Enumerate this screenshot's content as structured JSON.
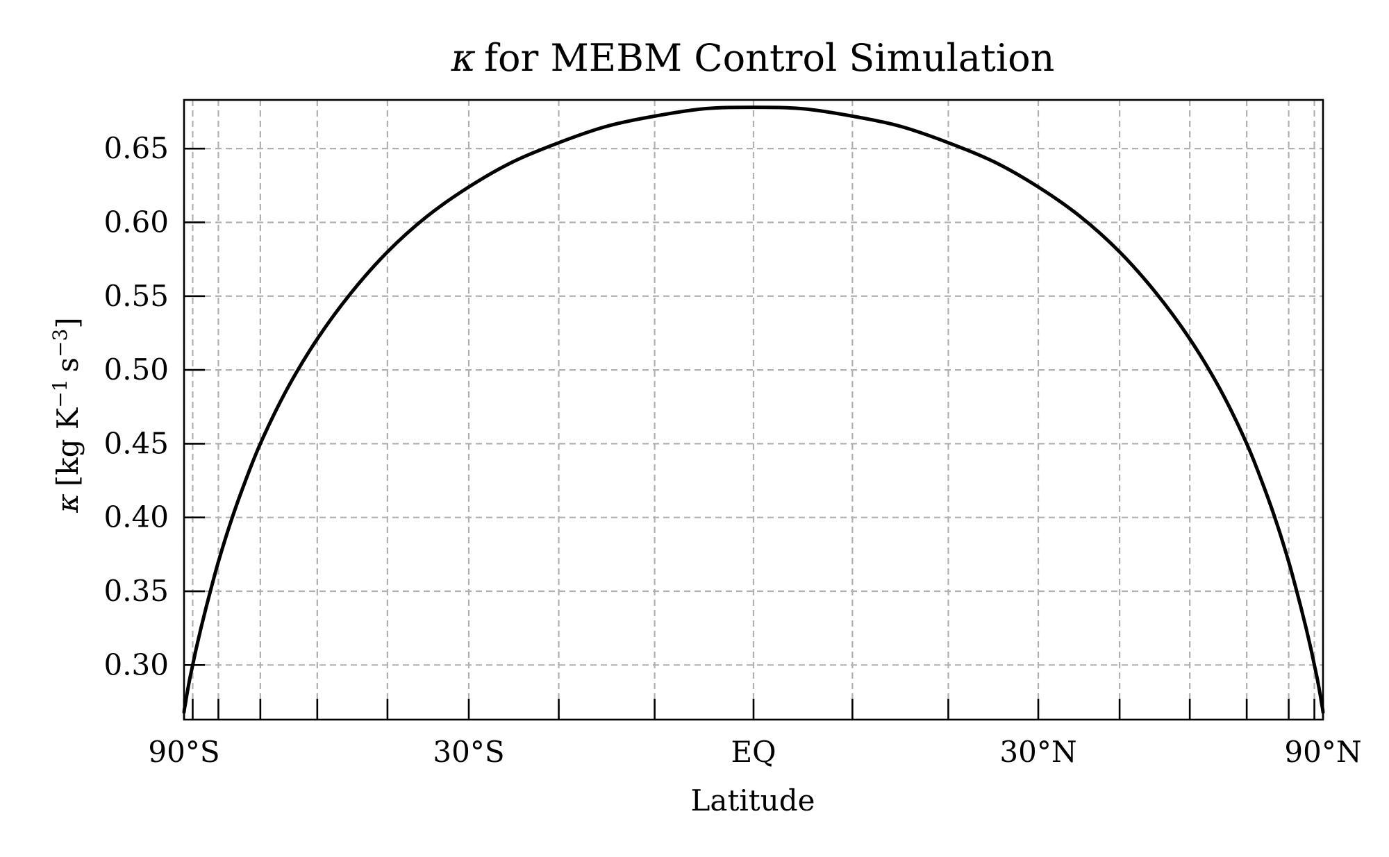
{
  "chart_data": {
    "type": "line",
    "title": "for MEBM Control Simulation",
    "title_symbol": "κ",
    "xlabel": "Latitude",
    "ylabel_symbol": "κ",
    "ylabel_open": "[kg K",
    "ylabel_exp1": "−1",
    "ylabel_mid": "s",
    "ylabel_exp2": "−3",
    "ylabel_close": "]",
    "x_scale": "sine of latitude",
    "xlim": [
      -90,
      90
    ],
    "ylim": [
      0.263,
      0.683
    ],
    "grid": true,
    "legend": "none",
    "line_color": "#000000",
    "grid_color": "#b0b0b0",
    "x_ticks": [
      {
        "value": -90,
        "label": "90°S"
      },
      {
        "value": -30,
        "label": "30°S"
      },
      {
        "value": 0,
        "label": "EQ"
      },
      {
        "value": 30,
        "label": "30°N"
      },
      {
        "value": 90,
        "label": "90°N"
      }
    ],
    "x_minor_ticks": [
      -80,
      -70,
      -60,
      -50,
      -40,
      -20,
      -10,
      10,
      20,
      40,
      50,
      60,
      70,
      80
    ],
    "y_ticks": [
      {
        "value": 0.3,
        "label": "0.30"
      },
      {
        "value": 0.35,
        "label": "0.35"
      },
      {
        "value": 0.4,
        "label": "0.40"
      },
      {
        "value": 0.45,
        "label": "0.45"
      },
      {
        "value": 0.5,
        "label": "0.50"
      },
      {
        "value": 0.55,
        "label": "0.55"
      },
      {
        "value": 0.6,
        "label": "0.60"
      },
      {
        "value": 0.65,
        "label": "0.65"
      }
    ],
    "series": [
      {
        "x": [
          -90,
          -88,
          -86,
          -84,
          -82,
          -80,
          -78,
          -76,
          -74,
          -72,
          -70,
          -67,
          -64,
          -60,
          -55,
          -50,
          -45,
          -40,
          -35,
          -30,
          -25,
          -20,
          -15,
          -10,
          -5,
          0,
          5,
          10,
          15,
          20,
          25,
          30,
          35,
          40,
          45,
          50,
          55,
          60,
          64,
          67,
          70,
          72,
          74,
          76,
          78,
          80,
          82,
          84,
          86,
          88,
          90
        ],
        "y": [
          0.268,
          0.27,
          0.274,
          0.281,
          0.29,
          0.3,
          0.312,
          0.325,
          0.339,
          0.354,
          0.37,
          0.394,
          0.418,
          0.45,
          0.487,
          0.521,
          0.552,
          0.58,
          0.604,
          0.624,
          0.641,
          0.654,
          0.665,
          0.672,
          0.677,
          0.678,
          0.677,
          0.672,
          0.665,
          0.654,
          0.641,
          0.624,
          0.604,
          0.58,
          0.552,
          0.521,
          0.487,
          0.45,
          0.418,
          0.394,
          0.37,
          0.354,
          0.339,
          0.325,
          0.312,
          0.3,
          0.29,
          0.281,
          0.274,
          0.27,
          0.268
        ]
      }
    ]
  }
}
